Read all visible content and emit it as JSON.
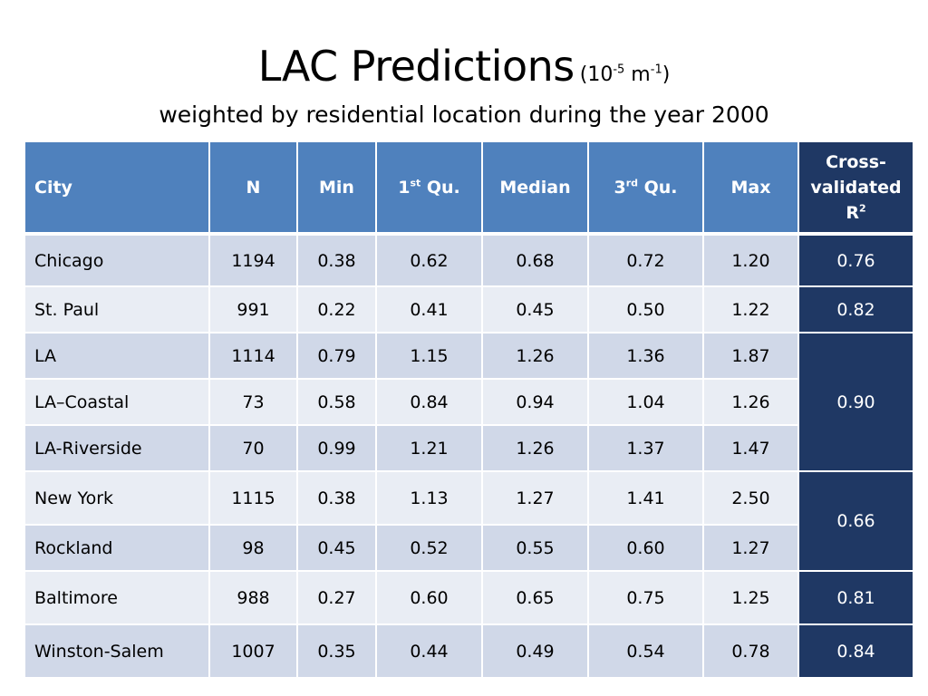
{
  "title": {
    "main": "LAC Predictions",
    "unit_open": "(10",
    "unit_exp1": "-5",
    "unit_mid": " m",
    "unit_exp2": "-1",
    "unit_close": ")"
  },
  "subtitle": "weighted by residential location during the year 2000",
  "table": {
    "headers": {
      "city": "City",
      "n": "N",
      "min": "Min",
      "q1_pre": "1",
      "q1_sup": "st",
      "q1_post": " Qu.",
      "median": "Median",
      "q3_pre": "3",
      "q3_sup": "rd",
      "q3_post": " Qu.",
      "max": "Max",
      "r2_line1": "Cross-",
      "r2_line2": "validated",
      "r2_line3": "R",
      "r2_sup": "2"
    },
    "rows": [
      {
        "city": "Chicago",
        "n": "1194",
        "min": "0.38",
        "q1": "0.62",
        "median": "0.68",
        "q3": "0.72",
        "max": "1.20",
        "r2": "0.76"
      },
      {
        "city": "St. Paul",
        "n": "991",
        "min": "0.22",
        "q1": "0.41",
        "median": "0.45",
        "q3": "0.50",
        "max": "1.22",
        "r2": "0.82"
      },
      {
        "city": "LA",
        "n": "1114",
        "min": "0.79",
        "q1": "1.15",
        "median": "1.26",
        "q3": "1.36",
        "max": "1.87",
        "r2": "0.90"
      },
      {
        "city": "LA–Coastal",
        "n": "73",
        "min": "0.58",
        "q1": "0.84",
        "median": "0.94",
        "q3": "1.04",
        "max": "1.26"
      },
      {
        "city": "LA-Riverside",
        "n": "70",
        "min": "0.99",
        "q1": "1.21",
        "median": "1.26",
        "q3": "1.37",
        "max": "1.47"
      },
      {
        "city": "New York",
        "n": "1115",
        "min": "0.38",
        "q1": "1.13",
        "median": "1.27",
        "q3": "1.41",
        "max": "2.50",
        "r2": "0.66"
      },
      {
        "city": "Rockland",
        "n": "98",
        "min": "0.45",
        "q1": "0.52",
        "median": "0.55",
        "q3": "0.60",
        "max": "1.27"
      },
      {
        "city": "Baltimore",
        "n": "988",
        "min": "0.27",
        "q1": "0.60",
        "median": "0.65",
        "q3": "0.75",
        "max": "1.25",
        "r2": "0.81"
      },
      {
        "city": "Winston-Salem",
        "n": "1007",
        "min": "0.35",
        "q1": "0.44",
        "median": "0.49",
        "q3": "0.54",
        "max": "0.78",
        "r2": "0.84"
      }
    ]
  },
  "colors": {
    "header_bg": "#4f81bd",
    "r2_bg": "#1f3864",
    "row_odd": "#d0d8e8",
    "row_even": "#e9edf4"
  }
}
